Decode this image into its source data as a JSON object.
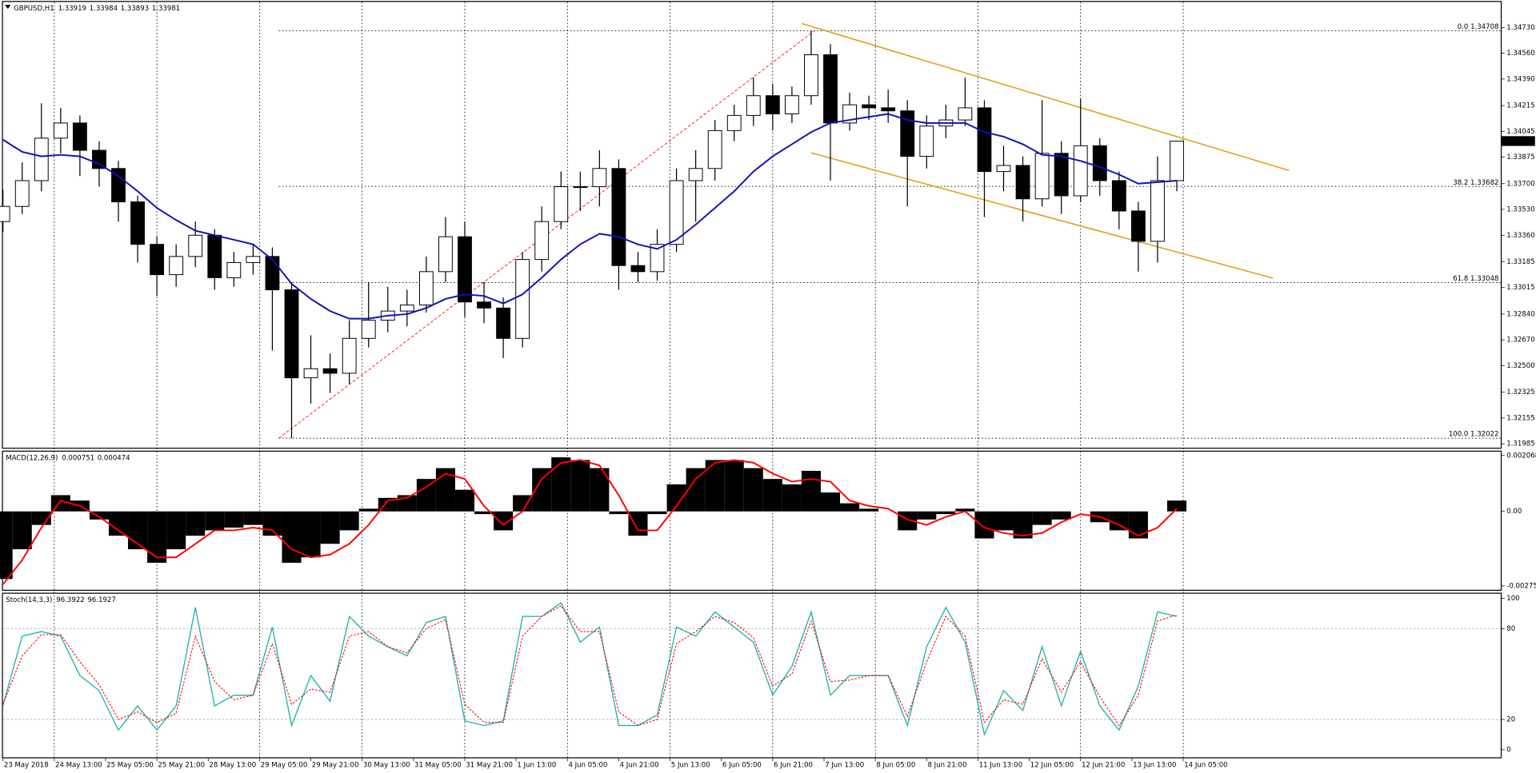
{
  "chart_data": [
    {
      "type": "candlestick",
      "title": "GBPUSD,H1",
      "quote": [
        1.33919,
        1.33984,
        1.33893,
        1.33981
      ],
      "bull_color": "#ffffff",
      "bear_color": "#000000",
      "x": [
        0,
        6,
        12,
        18,
        24,
        30,
        36,
        42,
        48,
        54,
        60,
        66,
        72,
        78,
        84,
        90,
        96,
        102,
        108,
        114,
        120,
        126,
        132,
        138,
        144,
        150,
        156,
        162,
        168,
        174,
        180,
        186,
        192,
        198,
        204,
        210,
        216,
        222,
        228,
        234,
        240,
        246,
        252,
        258,
        264,
        270,
        276,
        282,
        288,
        294,
        300,
        306,
        312,
        318,
        324,
        330,
        336,
        342,
        348,
        354,
        360,
        366
      ],
      "open": [
        1.3345,
        1.3355,
        1.3372,
        1.34,
        1.341,
        1.3392,
        1.338,
        1.3358,
        1.333,
        1.331,
        1.3322,
        1.3336,
        1.3308,
        1.3318,
        1.3322,
        1.33,
        1.3242,
        1.3248,
        1.3245,
        1.3268,
        1.328,
        1.3286,
        1.329,
        1.3312,
        1.3335,
        1.3292,
        1.3288,
        1.3268,
        1.332,
        1.3345,
        1.3368,
        1.3368,
        1.338,
        1.3316,
        1.3312,
        1.333,
        1.3372,
        1.338,
        1.3405,
        1.3415,
        1.3428,
        1.3416,
        1.3428,
        1.3455,
        1.341,
        1.3422,
        1.342,
        1.3418,
        1.3388,
        1.3408,
        1.3412,
        1.342,
        1.3378,
        1.3382,
        1.336,
        1.339,
        1.3362,
        1.3395,
        1.3372,
        1.3352,
        1.3332,
        1.3372
      ],
      "high": [
        1.3366,
        1.3384,
        1.3423,
        1.342,
        1.3415,
        1.3398,
        1.3385,
        1.3362,
        1.3335,
        1.333,
        1.3345,
        1.334,
        1.3325,
        1.333,
        1.3328,
        1.3305,
        1.327,
        1.3258,
        1.328,
        1.3305,
        1.3302,
        1.33,
        1.3322,
        1.3348,
        1.3345,
        1.3305,
        1.3295,
        1.3325,
        1.3355,
        1.3378,
        1.3378,
        1.3392,
        1.3386,
        1.3325,
        1.334,
        1.338,
        1.3392,
        1.3412,
        1.3422,
        1.344,
        1.3436,
        1.3434,
        1.34708,
        1.3462,
        1.343,
        1.3428,
        1.3432,
        1.3425,
        1.3415,
        1.3422,
        1.344,
        1.3425,
        1.3395,
        1.3388,
        1.3425,
        1.3398,
        1.3426,
        1.34,
        1.3378,
        1.3358,
        1.3388,
        1.33984
      ],
      "low": [
        1.3338,
        1.335,
        1.3365,
        1.339,
        1.3375,
        1.3368,
        1.3345,
        1.3318,
        1.3296,
        1.3302,
        1.3315,
        1.33,
        1.3302,
        1.331,
        1.326,
        1.32022,
        1.3225,
        1.3232,
        1.3238,
        1.3262,
        1.3272,
        1.3276,
        1.3285,
        1.3305,
        1.3282,
        1.3278,
        1.3255,
        1.3262,
        1.3312,
        1.334,
        1.3352,
        1.3355,
        1.33,
        1.3305,
        1.3306,
        1.3325,
        1.3345,
        1.3372,
        1.3398,
        1.3408,
        1.3405,
        1.341,
        1.3422,
        1.3372,
        1.3405,
        1.3412,
        1.341,
        1.3355,
        1.338,
        1.34,
        1.3408,
        1.3348,
        1.3365,
        1.3345,
        1.3355,
        1.335,
        1.3358,
        1.3362,
        1.334,
        1.3312,
        1.3318,
        1.3365
      ],
      "close": [
        1.3355,
        1.3372,
        1.34,
        1.341,
        1.3392,
        1.338,
        1.3358,
        1.333,
        1.331,
        1.3322,
        1.3336,
        1.3308,
        1.3318,
        1.3322,
        1.33,
        1.3242,
        1.3248,
        1.3245,
        1.3268,
        1.328,
        1.3286,
        1.329,
        1.3312,
        1.3335,
        1.3292,
        1.3288,
        1.3268,
        1.332,
        1.3345,
        1.3368,
        1.3368,
        1.338,
        1.3316,
        1.3312,
        1.333,
        1.3372,
        1.338,
        1.3405,
        1.3415,
        1.3428,
        1.3416,
        1.3428,
        1.3455,
        1.341,
        1.3422,
        1.342,
        1.3418,
        1.3388,
        1.3408,
        1.3412,
        1.342,
        1.3378,
        1.3382,
        1.336,
        1.339,
        1.3362,
        1.3395,
        1.3372,
        1.3352,
        1.3332,
        1.3372,
        1.3398
      ],
      "ma": {
        "color": "#1111b8",
        "values": [
          1.3399,
          1.3391,
          1.3388,
          1.3389,
          1.3388,
          1.3383,
          1.3375,
          1.3365,
          1.3354,
          1.3346,
          1.3339,
          1.3336,
          1.3333,
          1.333,
          1.332,
          1.3304,
          1.3294,
          1.3286,
          1.3281,
          1.3281,
          1.3283,
          1.3284,
          1.3288,
          1.3294,
          1.3297,
          1.3296,
          1.3291,
          1.3297,
          1.3308,
          1.332,
          1.333,
          1.3337,
          1.3335,
          1.333,
          1.3327,
          1.3333,
          1.3343,
          1.3354,
          1.3365,
          1.3378,
          1.3388,
          1.3396,
          1.3404,
          1.341,
          1.3412,
          1.3414,
          1.3416,
          1.3412,
          1.341,
          1.341,
          1.341,
          1.3404,
          1.3401,
          1.3396,
          1.3389,
          1.3388,
          1.3385,
          1.3381,
          1.3376,
          1.337,
          1.3371,
          1.3372
        ]
      },
      "fib_levels": [
        {
          "value": 1.34708,
          "label": "0.0 1.34708"
        },
        {
          "value": 1.33682,
          "label": "38.2 1.33682"
        },
        {
          "value": 1.33048,
          "label": "61.8 1.33048"
        },
        {
          "value": 1.32022,
          "label": "100.0 1.32022"
        }
      ],
      "fib_line": {
        "color": "#ff2020",
        "x": [
          86,
          253
        ],
        "y": [
          1.32022,
          1.34708
        ]
      },
      "channel": {
        "color": "#e0a020",
        "lines": [
          {
            "x": [
              249,
              401
            ],
            "y": [
              1.34756,
              1.33787
            ]
          },
          {
            "x": [
              252,
              396
            ],
            "y": [
              1.33903,
              1.33077
            ]
          }
        ]
      },
      "ylim": [
        1.31959,
        1.34898
      ],
      "yticks": [
        {
          "value": 1.3473,
          "label": "1.34730"
        },
        {
          "value": 1.3456,
          "label": "1.34560"
        },
        {
          "value": 1.3439,
          "label": "1.34390"
        },
        1.34215,
        1.34045,
        1.33875,
        {
          "value": 1.337,
          "label": "1.33700"
        },
        {
          "value": 1.3353,
          "label": "1.33530"
        },
        {
          "value": 1.3336,
          "label": "1.33360"
        },
        1.33185,
        1.33015,
        {
          "value": 1.3284,
          "label": "1.32840"
        },
        {
          "value": 1.3267,
          "label": "1.32670"
        },
        {
          "value": 1.325,
          "label": "1.32500"
        },
        1.32325,
        1.32155,
        1.31985
      ]
    },
    {
      "type": "histogram",
      "title": "MACD(12,26,9)",
      "quote": [
        0.000751,
        0.000474
      ],
      "color": "#000000",
      "x": [
        0,
        6,
        12,
        18,
        24,
        30,
        36,
        42,
        48,
        54,
        60,
        66,
        72,
        78,
        84,
        90,
        96,
        102,
        108,
        114,
        120,
        126,
        132,
        138,
        144,
        150,
        156,
        162,
        168,
        174,
        180,
        186,
        192,
        198,
        204,
        210,
        216,
        222,
        228,
        234,
        240,
        246,
        252,
        258,
        264,
        270,
        276,
        282,
        288,
        294,
        300,
        306,
        312,
        318,
        324,
        330,
        336,
        342,
        348,
        354,
        360,
        366
      ],
      "values": [
        -0.0025,
        -0.0014,
        -0.0005,
        0.0006,
        0.0004,
        -0.0003,
        -0.0009,
        -0.0014,
        -0.0019,
        -0.0014,
        -0.0009,
        -0.0007,
        -0.0006,
        -0.0005,
        -0.0009,
        -0.0019,
        -0.0017,
        -0.0012,
        -0.0007,
        0.0001,
        0.0005,
        0.0006,
        0.0012,
        0.0016,
        0.0008,
        -0.0001,
        -0.0007,
        0.0006,
        0.0016,
        0.002,
        0.0019,
        0.0016,
        -0.0001,
        -0.0009,
        -0.0001,
        0.001,
        0.0016,
        0.0019,
        0.0019,
        0.0016,
        0.0012,
        0.001,
        0.0015,
        0.0007,
        0.0003,
        0.0001,
        0,
        -0.0007,
        -0.0003,
        -0.0001,
        0.0001,
        -0.001,
        -0.0007,
        -0.001,
        -0.0005,
        -0.0003,
        0,
        -0.0004,
        -0.0007,
        -0.001,
        0,
        0.0004
      ],
      "signal": {
        "color": "#ff0000",
        "values": [
          -0.0027,
          -0.0018,
          -0.0006,
          0.0004,
          0.0002,
          -0.0002,
          -0.0007,
          -0.0012,
          -0.0017,
          -0.0017,
          -0.0012,
          -0.0007,
          -0.0007,
          -0.0006,
          -0.0007,
          -0.0014,
          -0.0017,
          -0.0016,
          -0.0012,
          -0.0005,
          0.0004,
          0.0005,
          0.0009,
          0.0014,
          0.0012,
          0.0002,
          -0.0005,
          0,
          0.0012,
          0.0018,
          0.0019,
          0.0017,
          0.0006,
          -0.0007,
          -0.0007,
          0.0002,
          0.0012,
          0.0018,
          0.0019,
          0.0018,
          0.0014,
          0.0011,
          0.0012,
          0.0011,
          0.0004,
          0.0002,
          0.0001,
          -0.0003,
          -0.0005,
          -0.0002,
          0,
          -0.0006,
          -0.0008,
          -0.0009,
          -0.0008,
          -0.0004,
          -0.0001,
          -0.0002,
          -0.0005,
          -0.0009,
          -0.0006,
          0.0001
        ]
      },
      "ylim": [
        -0.0029,
        0.00221
      ],
      "yticks": [
        0.002068,
        {
          "value": 0,
          "label": "0.00"
        },
        -0.002754
      ]
    },
    {
      "type": "line",
      "title": "Stoch(14,3,3)",
      "quote": [
        96.3922,
        96.1927
      ],
      "grid": true,
      "x": [
        0,
        6,
        12,
        18,
        24,
        30,
        36,
        42,
        48,
        54,
        60,
        66,
        72,
        78,
        84,
        90,
        96,
        102,
        108,
        114,
        120,
        126,
        132,
        138,
        144,
        150,
        156,
        162,
        168,
        174,
        180,
        186,
        192,
        198,
        204,
        210,
        216,
        222,
        228,
        234,
        240,
        246,
        252,
        258,
        264,
        270,
        276,
        282,
        288,
        294,
        300,
        306,
        312,
        318,
        324,
        330,
        336,
        342,
        348,
        354,
        360,
        366
      ],
      "series": [
        {
          "color": "#20b2aa",
          "dashed": false,
          "values": [
            29,
            75,
            78,
            75,
            49,
            39,
            13,
            29,
            13,
            29,
            94,
            29,
            36,
            36,
            81,
            16,
            49,
            32,
            88,
            75,
            68,
            62,
            84,
            88,
            19,
            16,
            19,
            88,
            88,
            97,
            71,
            81,
            16,
            16,
            23,
            81,
            75,
            91,
            81,
            71,
            36,
            55,
            91,
            36,
            49,
            49,
            49,
            16,
            68,
            94,
            71,
            10,
            39,
            26,
            68,
            29,
            65,
            29,
            13,
            42,
            91,
            88
          ]
        },
        {
          "color": "#ff0000",
          "dashed": true,
          "values": [
            30,
            62,
            76,
            76,
            58,
            43,
            20,
            25,
            18,
            24,
            75,
            45,
            33,
            36,
            70,
            30,
            40,
            38,
            75,
            78,
            68,
            64,
            80,
            86,
            30,
            18,
            18,
            75,
            88,
            95,
            78,
            78,
            25,
            16,
            20,
            70,
            78,
            88,
            84,
            74,
            42,
            50,
            85,
            45,
            46,
            49,
            49,
            22,
            58,
            88,
            75,
            18,
            33,
            30,
            60,
            38,
            58,
            35,
            16,
            36,
            85,
            89
          ]
        }
      ],
      "ylim": [
        -5,
        103
      ],
      "yticks": [
        0,
        20,
        80,
        100
      ],
      "xlim": [
        0,
        467
      ],
      "xticks": [
        {
          "value": 0,
          "label": "23 May 2018"
        },
        {
          "value": 16,
          "label": "24 May 13:00"
        },
        {
          "value": 32,
          "label": "25 May 05:00"
        },
        {
          "value": 48,
          "label": "25 May 21:00"
        },
        {
          "value": 64,
          "label": "28 May 13:00"
        },
        {
          "value": 80,
          "label": "29 May 05:00"
        },
        {
          "value": 96,
          "label": "29 May 21:00"
        },
        {
          "value": 112,
          "label": "30 May 13:00"
        },
        {
          "value": 128,
          "label": "31 May 05:00"
        },
        {
          "value": 144,
          "label": "31 May 21:00"
        },
        {
          "value": 160,
          "label": "1 Jun 13:00"
        },
        {
          "value": 176,
          "label": "4 Jun 05:00"
        },
        {
          "value": 192,
          "label": "4 Jun 21:00"
        },
        {
          "value": 208,
          "label": "5 Jun 13:00"
        },
        {
          "value": 224,
          "label": "6 Jun 05:00"
        },
        {
          "value": 240,
          "label": "6 Jun 21:00"
        },
        {
          "value": 256,
          "label": "7 Jun 13:00"
        },
        {
          "value": 272,
          "label": "8 Jun 05:00"
        },
        {
          "value": 288,
          "label": "8 Jun 21:00"
        },
        {
          "value": 304,
          "label": "11 Jun 13:00"
        },
        {
          "value": 320,
          "label": "12 Jun 05:00"
        },
        {
          "value": 336,
          "label": "12 Jun 21:00"
        },
        {
          "value": 352,
          "label": "13 Jun 13:00"
        },
        {
          "value": 368,
          "label": "14 Jun 05:00"
        }
      ]
    }
  ]
}
